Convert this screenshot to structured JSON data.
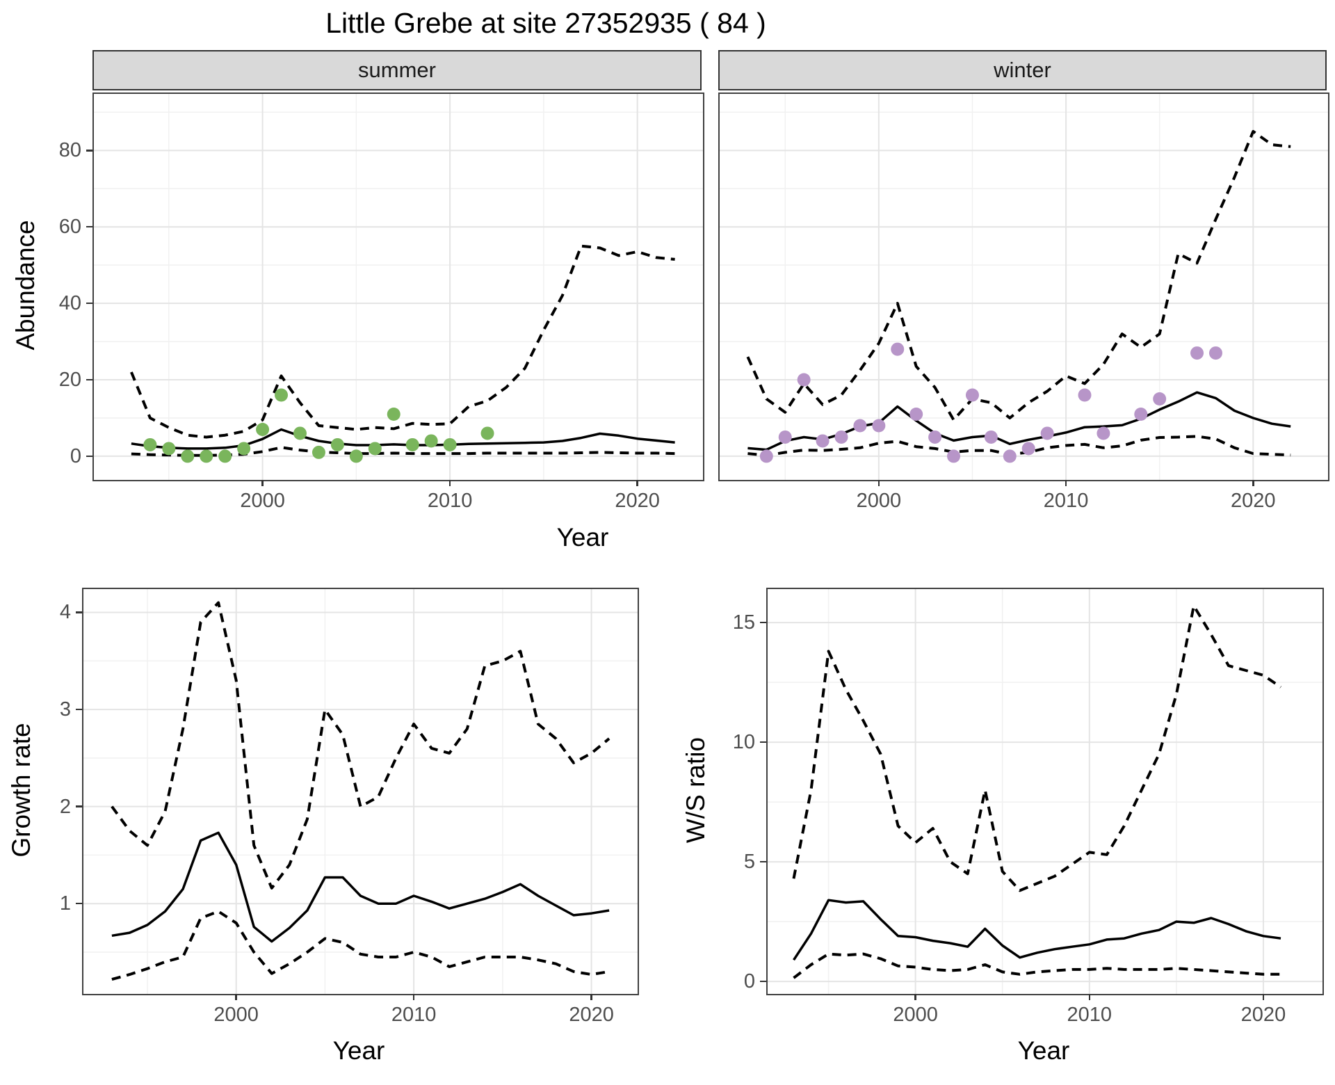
{
  "title": "Little Grebe at site 27352935 ( 84 )",
  "colors": {
    "summer_points": "#7ab55c",
    "winter_points": "#b795c8",
    "fit_line": "#000000",
    "interval_line": "#000000",
    "strip_background": "#d9d9d9",
    "major_grid": "#e4e4e4",
    "minor_grid": "#f1f1f1",
    "panel_border": "#404040",
    "tick_text": "#4d4d4d"
  },
  "chart_data": [
    {
      "id": "abundance-summer",
      "type": "line",
      "facet": "summer",
      "xlabel": "Year",
      "ylabel": "Abundance",
      "xlim": [
        1991,
        2023.5
      ],
      "ylim": [
        -6.2,
        94.8
      ],
      "xticks": [
        2000,
        2010,
        2020
      ],
      "xminor": [
        1995,
        2005,
        2015
      ],
      "yticks": [
        0,
        20,
        40,
        60,
        80
      ],
      "yminor": [
        10,
        30,
        50,
        70,
        90
      ],
      "grid": true,
      "legend": "none",
      "years": [
        1993,
        1994,
        1995,
        1996,
        1997,
        1998,
        1999,
        2000,
        2001,
        2002,
        2003,
        2004,
        2005,
        2006,
        2007,
        2008,
        2009,
        2010,
        2011,
        2012,
        2013,
        2014,
        2015,
        2016,
        2017,
        2018,
        2019,
        2020,
        2021,
        2022
      ],
      "series": [
        {
          "name": "upper-95ci",
          "style": "dashed",
          "values": [
            22,
            10,
            7.5,
            5.5,
            5,
            5.5,
            6.5,
            9.5,
            21,
            14,
            8,
            7.5,
            7,
            7.5,
            7.2,
            8.6,
            8.3,
            8.5,
            13,
            14.5,
            18,
            23,
            33,
            42,
            55,
            54.5,
            52.5,
            53.5,
            52,
            51.5
          ]
        },
        {
          "name": "lower-95ci",
          "style": "dashed",
          "values": [
            0.6,
            0.4,
            0.3,
            0.2,
            0.2,
            0.3,
            0.5,
            1.2,
            2.3,
            1.6,
            1.1,
            0.9,
            0.7,
            0.7,
            0.8,
            0.7,
            0.7,
            0.7,
            0.7,
            0.8,
            0.8,
            0.8,
            0.8,
            0.8,
            0.9,
            1.0,
            0.9,
            0.8,
            0.8,
            0.7
          ]
        },
        {
          "name": "fitted-median",
          "style": "solid",
          "values": [
            3.3,
            2.6,
            2.2,
            2.0,
            2.0,
            2.2,
            2.8,
            4.5,
            7.0,
            5.3,
            4.0,
            3.3,
            2.9,
            2.9,
            3.1,
            2.9,
            2.9,
            3.0,
            3.2,
            3.3,
            3.4,
            3.5,
            3.6,
            4.0,
            4.8,
            5.9,
            5.4,
            4.6,
            4.1,
            3.6
          ]
        },
        {
          "name": "observed-counts",
          "style": "points",
          "color": "#7ab55c",
          "x": [
            1994,
            1995,
            1996,
            1997,
            1998,
            1999,
            2000,
            2001,
            2002,
            2003,
            2004,
            2005,
            2006,
            2007,
            2008,
            2009,
            2010,
            2012
          ],
          "values": [
            3,
            2,
            0,
            0,
            0,
            2,
            7,
            16,
            6,
            1,
            3,
            0,
            2,
            11,
            3,
            4,
            3,
            6
          ]
        }
      ]
    },
    {
      "id": "abundance-winter",
      "type": "line",
      "facet": "winter",
      "xlabel": "Year",
      "ylabel": "Abundance",
      "xlim": [
        1991.5,
        2024
      ],
      "ylim": [
        -6.2,
        94.8
      ],
      "xticks": [
        2000,
        2010,
        2020
      ],
      "xminor": [
        1995,
        2005,
        2015
      ],
      "yticks": [
        0,
        20,
        40,
        60,
        80
      ],
      "yminor": [
        10,
        30,
        50,
        70,
        90
      ],
      "grid": true,
      "legend": "none",
      "years": [
        1993,
        1994,
        1995,
        1996,
        1997,
        1998,
        1999,
        2000,
        2001,
        2002,
        2003,
        2004,
        2005,
        2006,
        2007,
        2008,
        2009,
        2010,
        2011,
        2012,
        2013,
        2014,
        2015,
        2016,
        2017,
        2018,
        2019,
        2020,
        2021,
        2022
      ],
      "series": [
        {
          "name": "upper-95ci",
          "style": "dashed",
          "values": [
            26,
            15,
            11.5,
            19,
            13.5,
            16,
            22.5,
            29.5,
            40,
            23.5,
            18,
            9.5,
            15,
            14,
            10,
            14,
            17,
            21,
            19,
            24,
            32,
            28.5,
            32,
            53,
            50.5,
            62,
            73,
            85,
            81.5,
            81
          ]
        },
        {
          "name": "lower-95ci",
          "style": "dashed",
          "values": [
            0.7,
            0.2,
            1.0,
            1.6,
            1.5,
            1.8,
            2.2,
            3.4,
            3.9,
            2.5,
            2.0,
            1.1,
            1.5,
            1.5,
            0.5,
            1.0,
            2.2,
            2.8,
            3.1,
            2.2,
            2.7,
            4.2,
            4.9,
            5.0,
            5.2,
            4.5,
            2.2,
            0.7,
            0.5,
            0.3
          ]
        },
        {
          "name": "fitted-median",
          "style": "solid",
          "values": [
            2.1,
            1.7,
            4.0,
            5.0,
            4.4,
            5.8,
            7.8,
            8.7,
            13.0,
            9.3,
            6.0,
            4.1,
            5.0,
            5.4,
            3.2,
            4.3,
            5.2,
            6.2,
            7.6,
            7.8,
            8.1,
            9.8,
            12.2,
            14.3,
            16.7,
            15.2,
            11.9,
            10.0,
            8.5,
            7.8
          ]
        },
        {
          "name": "observed-counts",
          "style": "points",
          "color": "#b795c8",
          "x": [
            1994,
            1995,
            1996,
            1997,
            1998,
            1999,
            2000,
            2001,
            2002,
            2003,
            2004,
            2005,
            2006,
            2007,
            2008,
            2009,
            2011,
            2012,
            2014,
            2015,
            2017,
            2018
          ],
          "values": [
            0,
            5,
            20,
            4,
            5,
            8,
            8,
            28,
            11,
            5,
            0,
            16,
            5,
            0,
            2,
            6,
            16,
            6,
            11,
            15,
            27,
            27
          ]
        }
      ]
    },
    {
      "id": "growth-rate",
      "type": "line",
      "xlabel": "Year",
      "ylabel": "Growth rate",
      "xlim": [
        1991.4,
        2022.6
      ],
      "ylim": [
        0.07,
        4.24
      ],
      "xticks": [
        2000,
        2010,
        2020
      ],
      "xminor": [
        1995,
        2005,
        2015
      ],
      "yticks": [
        1,
        2,
        3,
        4
      ],
      "yminor": [
        0.5,
        1.5,
        2.5,
        3.5
      ],
      "grid": true,
      "legend": "none",
      "years": [
        1993,
        1994,
        1995,
        1996,
        1997,
        1998,
        1999,
        2000,
        2001,
        2002,
        2003,
        2004,
        2005,
        2006,
        2007,
        2008,
        2009,
        2010,
        2011,
        2012,
        2013,
        2014,
        2015,
        2016,
        2017,
        2018,
        2019,
        2020,
        2021
      ],
      "series": [
        {
          "name": "upper-95ci",
          "style": "dashed",
          "values": [
            2.0,
            1.75,
            1.6,
            1.95,
            2.8,
            3.9,
            4.1,
            3.3,
            1.6,
            1.16,
            1.4,
            1.87,
            3.0,
            2.74,
            2.0,
            2.1,
            2.5,
            2.85,
            2.6,
            2.55,
            2.8,
            3.45,
            3.5,
            3.6,
            2.85,
            2.7,
            2.45,
            2.55,
            2.7
          ]
        },
        {
          "name": "lower-95ci",
          "style": "dashed",
          "values": [
            0.22,
            0.27,
            0.33,
            0.4,
            0.45,
            0.85,
            0.92,
            0.8,
            0.5,
            0.28,
            0.38,
            0.5,
            0.64,
            0.6,
            0.48,
            0.45,
            0.45,
            0.5,
            0.45,
            0.35,
            0.4,
            0.45,
            0.45,
            0.45,
            0.42,
            0.38,
            0.3,
            0.27,
            0.3
          ]
        },
        {
          "name": "fitted-median",
          "style": "solid",
          "values": [
            0.67,
            0.7,
            0.78,
            0.92,
            1.15,
            1.65,
            1.73,
            1.4,
            0.76,
            0.61,
            0.75,
            0.93,
            1.27,
            1.27,
            1.08,
            1.0,
            1.0,
            1.08,
            1.02,
            0.95,
            1.0,
            1.05,
            1.12,
            1.2,
            1.08,
            0.98,
            0.88,
            0.9,
            0.93
          ]
        }
      ]
    },
    {
      "id": "ws-ratio",
      "type": "line",
      "xlabel": "Year",
      "ylabel": "W/S ratio",
      "xlim": [
        1991.5,
        2023.4
      ],
      "ylim": [
        -0.52,
        16.4
      ],
      "xticks": [
        2000,
        2010,
        2020
      ],
      "xminor": [
        1995,
        2005,
        2015
      ],
      "yticks": [
        0,
        5,
        10,
        15
      ],
      "yminor": [
        2.5,
        7.5,
        12.5
      ],
      "grid": true,
      "legend": "none",
      "years": [
        1993,
        1994,
        1995,
        1996,
        1997,
        1998,
        1999,
        2000,
        2001,
        2002,
        2003,
        2004,
        2005,
        2006,
        2007,
        2008,
        2009,
        2010,
        2011,
        2012,
        2013,
        2014,
        2015,
        2016,
        2017,
        2018,
        2019,
        2020,
        2021
      ],
      "series": [
        {
          "name": "upper-95ci",
          "style": "dashed",
          "values": [
            4.3,
            8.0,
            13.8,
            12.2,
            10.9,
            9.5,
            6.5,
            5.8,
            6.4,
            5.0,
            4.5,
            8.0,
            4.6,
            3.8,
            4.1,
            4.4,
            4.9,
            5.4,
            5.3,
            6.5,
            8.0,
            9.5,
            12.0,
            15.7,
            14.5,
            13.2,
            13.0,
            12.8,
            12.3
          ]
        },
        {
          "name": "lower-95ci",
          "style": "dashed",
          "values": [
            0.15,
            0.7,
            1.15,
            1.1,
            1.15,
            0.95,
            0.65,
            0.6,
            0.5,
            0.45,
            0.5,
            0.7,
            0.4,
            0.3,
            0.4,
            0.45,
            0.5,
            0.5,
            0.55,
            0.5,
            0.5,
            0.5,
            0.55,
            0.5,
            0.45,
            0.4,
            0.35,
            0.3,
            0.3
          ]
        },
        {
          "name": "fitted-median",
          "style": "solid",
          "values": [
            0.9,
            2.0,
            3.4,
            3.3,
            3.35,
            2.6,
            1.9,
            1.85,
            1.7,
            1.6,
            1.45,
            2.2,
            1.5,
            1.0,
            1.2,
            1.35,
            1.45,
            1.55,
            1.75,
            1.8,
            2.0,
            2.15,
            2.5,
            2.45,
            2.65,
            2.4,
            2.1,
            1.9,
            1.8
          ]
        }
      ]
    }
  ]
}
